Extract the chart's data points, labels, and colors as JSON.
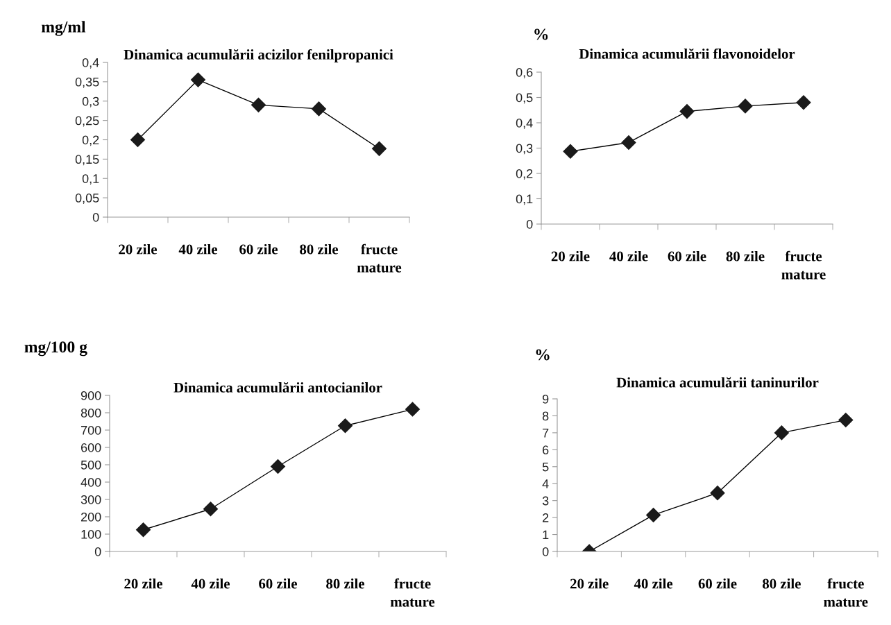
{
  "chart_data": [
    {
      "type": "line",
      "title": "Dinamica acumulării acizilor fenilpropanici",
      "ylabel": "mg/ml",
      "categories": [
        "20 zile",
        "40 zile",
        "60 zile",
        "80 zile",
        "fructe\nmature"
      ],
      "series": [
        {
          "color": "#000000",
          "values": [
            0.2,
            0.355,
            0.29,
            0.28,
            0.177
          ]
        }
      ],
      "ylim": [
        0,
        0.4
      ],
      "yticks": [
        0,
        {
          "value": 0.05,
          "label": "0,05"
        },
        {
          "value": 0.1,
          "label": "0,1"
        },
        {
          "value": 0.15,
          "label": "0,15"
        },
        {
          "value": 0.2,
          "label": "0,2"
        },
        {
          "value": 0.25,
          "label": "0,25"
        },
        {
          "value": 0.3,
          "label": "0,3"
        },
        {
          "value": 0.35,
          "label": "0,35"
        },
        {
          "value": 0.4,
          "label": "0,4"
        }
      ],
      "grid": false,
      "marker": "diamond",
      "line_style": "solid"
    },
    {
      "type": "line",
      "title": "Dinamica acumulării flavonoidelor",
      "ylabel": "%",
      "categories": [
        "20 zile",
        "40 zile",
        "60 zile",
        "80 zile",
        "fructe\nmature"
      ],
      "series": [
        {
          "color": "#000000",
          "values": [
            0.287,
            0.322,
            0.445,
            0.466,
            0.48
          ]
        }
      ],
      "ylim": [
        0,
        0.6
      ],
      "yticks": [
        0,
        {
          "value": 0.1,
          "label": "0,1"
        },
        {
          "value": 0.2,
          "label": "0,2"
        },
        {
          "value": 0.3,
          "label": "0,3"
        },
        {
          "value": 0.4,
          "label": "0,4"
        },
        {
          "value": 0.5,
          "label": "0,5"
        },
        {
          "value": 0.6,
          "label": "0,6"
        }
      ],
      "grid": false,
      "marker": "diamond",
      "line_style": "solid"
    },
    {
      "type": "line",
      "title": "Dinamica acumulării antocianilor",
      "ylabel": "mg/100 g",
      "categories": [
        "20 zile",
        "40 zile",
        "60 zile",
        "80 zile",
        "fructe\nmature"
      ],
      "series": [
        {
          "color": "#000000",
          "values": [
            125,
            245,
            490,
            725,
            820
          ]
        }
      ],
      "ylim": [
        0,
        900
      ],
      "yticks": [
        0,
        100,
        200,
        300,
        400,
        500,
        600,
        700,
        800,
        900
      ],
      "grid": false,
      "marker": "diamond",
      "line_style": "solid"
    },
    {
      "type": "line",
      "title": "Dinamica acumulării taninurilor",
      "ylabel": "%",
      "categories": [
        "20 zile",
        "40 zile",
        "60 zile",
        "80 zile",
        "fructe\nmature"
      ],
      "series": [
        {
          "color": "#000000",
          "values": [
            0,
            2.15,
            3.45,
            7.0,
            7.75
          ]
        }
      ],
      "ylim": [
        0,
        9
      ],
      "yticks": [
        0,
        1,
        2,
        3,
        4,
        5,
        6,
        7,
        8,
        9
      ],
      "grid": false,
      "marker": "diamond",
      "line_style": "solid"
    }
  ]
}
